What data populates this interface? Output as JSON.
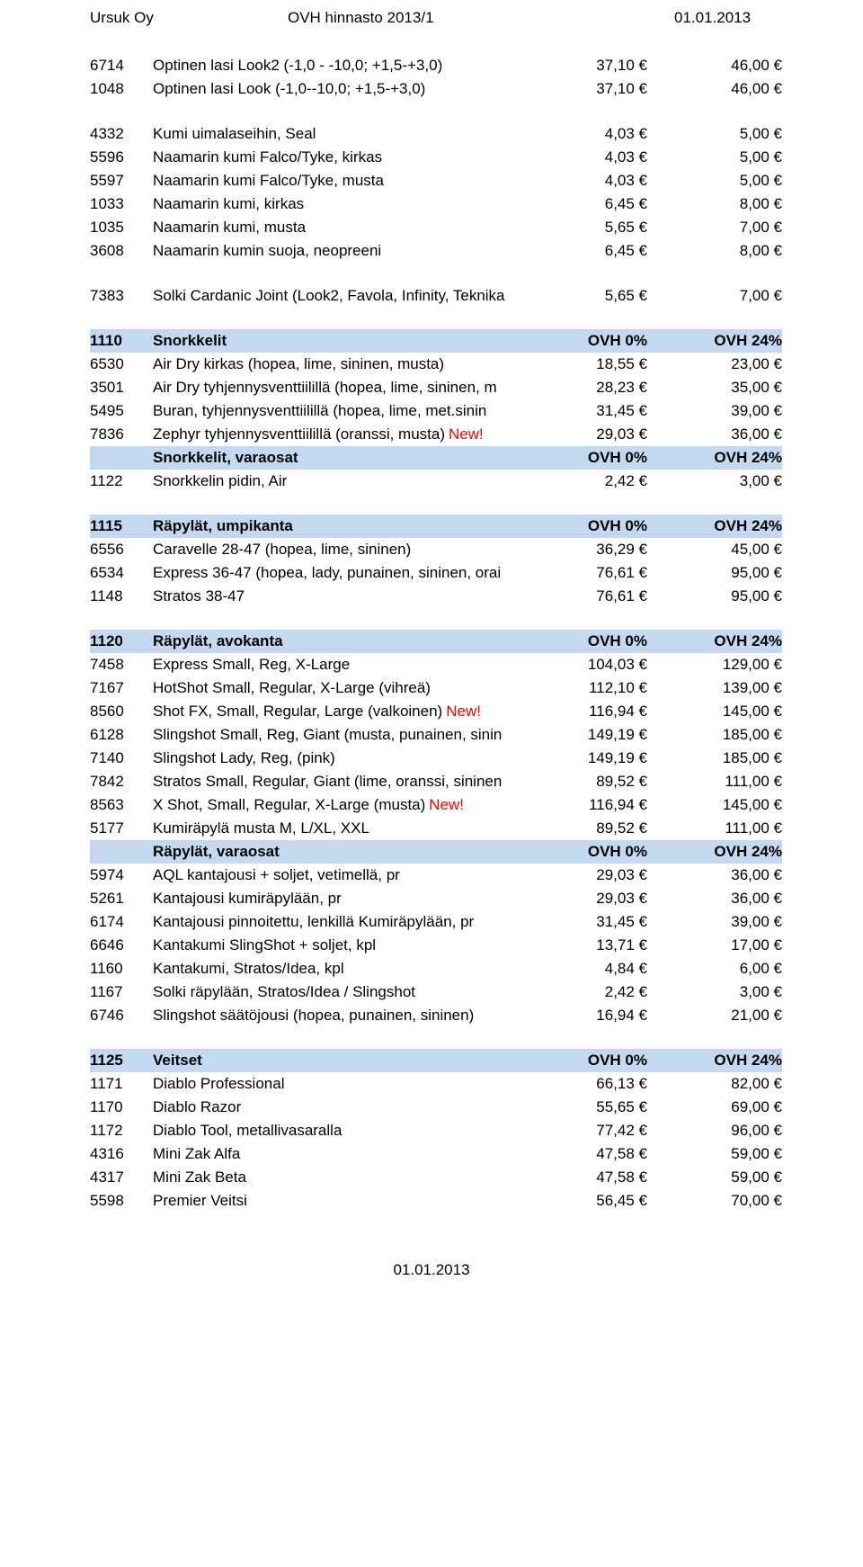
{
  "colors": {
    "header_bg": "#c4d9ef",
    "new_color": "#ff0000"
  },
  "page_header": {
    "left": "Ursuk Oy",
    "center": "OVH hinnasto 2013/1",
    "right": "01.01.2013"
  },
  "footer": "01.01.2013",
  "groups": [
    {
      "header": null,
      "rows": [
        {
          "code": "6714",
          "desc": "Optinen lasi Look2 (-1,0 - -10,0; +1,5-+3,0)",
          "p0": "37,10 €",
          "p24": "46,00 €"
        },
        {
          "code": "1048",
          "desc": "Optinen lasi Look (-1,0--10,0; +1,5-+3,0)",
          "p0": "37,10 €",
          "p24": "46,00 €"
        }
      ]
    },
    {
      "header": null,
      "rows": [
        {
          "code": "4332",
          "desc": "Kumi uimalaseihin, Seal",
          "p0": "4,03 €",
          "p24": "5,00 €"
        },
        {
          "code": "5596",
          "desc": "Naamarin kumi Falco/Tyke, kirkas",
          "p0": "4,03 €",
          "p24": "5,00 €"
        },
        {
          "code": "5597",
          "desc": "Naamarin kumi Falco/Tyke, musta",
          "p0": "4,03 €",
          "p24": "5,00 €"
        },
        {
          "code": "1033",
          "desc": "Naamarin kumi, kirkas",
          "p0": "6,45 €",
          "p24": "8,00 €"
        },
        {
          "code": "1035",
          "desc": "Naamarin kumi, musta",
          "p0": "5,65 €",
          "p24": "7,00 €"
        },
        {
          "code": "3608",
          "desc": "Naamarin kumin suoja, neopreeni",
          "p0": "6,45 €",
          "p24": "8,00 €"
        }
      ]
    },
    {
      "header": null,
      "rows": [
        {
          "code": "7383",
          "desc": "Solki Cardanic Joint (Look2, Favola, Infinity, Teknika",
          "p0": "5,65 €",
          "p24": "7,00 €"
        }
      ]
    },
    {
      "header": {
        "code": "1110",
        "desc": "Snorkkelit",
        "p0": "OVH 0%",
        "p24": "OVH 24%"
      },
      "rows": [
        {
          "code": "6530",
          "desc": "Air Dry kirkas (hopea, lime, sininen, musta)",
          "p0": "18,55 €",
          "p24": "23,00 €"
        },
        {
          "code": "3501",
          "desc": "Air Dry tyhjennysventtiilillä (hopea, lime, sininen, m",
          "p0": "28,23 €",
          "p24": "35,00 €"
        },
        {
          "code": "5495",
          "desc": "Buran, tyhjennysventtiilillä (hopea, lime, met.sinin",
          "p0": "31,45 €",
          "p24": "39,00 €"
        },
        {
          "code": "7836",
          "desc": "Zephyr tyhjennysventtiilillä (oranssi, musta)",
          "extra": "New!",
          "p0": "29,03 €",
          "p24": "36,00 €"
        }
      ],
      "subheader": {
        "code": "",
        "desc": "Snorkkelit, varaosat",
        "p0": "OVH 0%",
        "p24": "OVH 24%"
      },
      "subrows": [
        {
          "code": "1122",
          "desc": "Snorkkelin pidin, Air",
          "p0": "2,42 €",
          "p24": "3,00 €"
        }
      ]
    },
    {
      "header": {
        "code": "1115",
        "desc": "Räpylät, umpikanta",
        "p0": "OVH 0%",
        "p24": "OVH 24%"
      },
      "rows": [
        {
          "code": "6556",
          "desc": "Caravelle 28-47 (hopea, lime, sininen)",
          "p0": "36,29 €",
          "p24": "45,00 €"
        },
        {
          "code": "6534",
          "desc": "Express 36-47 (hopea, lady, punainen, sininen, orai",
          "p0": "76,61 €",
          "p24": "95,00 €"
        },
        {
          "code": "1148",
          "desc": "Stratos 38-47",
          "p0": "76,61 €",
          "p24": "95,00 €"
        }
      ]
    },
    {
      "header": {
        "code": "1120",
        "desc": "Räpylät, avokanta",
        "p0": "OVH 0%",
        "p24": "OVH 24%"
      },
      "rows": [
        {
          "code": "7458",
          "desc": "Express Small, Reg, X-Large",
          "p0": "104,03 €",
          "p24": "129,00 €"
        },
        {
          "code": "7167",
          "desc": "HotShot Small, Regular, X-Large (vihreä)",
          "p0": "112,10 €",
          "p24": "139,00 €"
        },
        {
          "code": "8560",
          "desc": "Shot FX, Small, Regular, Large (valkoinen)",
          "extra": "New!",
          "p0": "116,94 €",
          "p24": "145,00 €"
        },
        {
          "code": "6128",
          "desc": "Slingshot Small, Reg, Giant (musta, punainen, sinin",
          "p0": "149,19 €",
          "p24": "185,00 €"
        },
        {
          "code": "7140",
          "desc": "Slingshot Lady, Reg, (pink)",
          "p0": "149,19 €",
          "p24": "185,00 €"
        },
        {
          "code": "7842",
          "desc": "Stratos Small, Regular, Giant (lime, oranssi, sininen",
          "p0": "89,52 €",
          "p24": "111,00 €"
        },
        {
          "code": "8563",
          "desc": "X Shot, Small, Regular, X-Large (musta)",
          "extra": "New!",
          "p0": "116,94 €",
          "p24": "145,00 €"
        },
        {
          "code": "5177",
          "desc": "Kumiräpylä musta M, L/XL, XXL",
          "p0": "89,52 €",
          "p24": "111,00 €"
        }
      ],
      "subheader": {
        "code": "",
        "desc": "Räpylät, varaosat",
        "p0": "OVH 0%",
        "p24": "OVH 24%"
      },
      "subrows": [
        {
          "code": "5974",
          "desc": "AQL kantajousi + soljet, vetimellä, pr",
          "p0": "29,03 €",
          "p24": "36,00 €"
        },
        {
          "code": "5261",
          "desc": "Kantajousi kumiräpylään, pr",
          "p0": "29,03 €",
          "p24": "36,00 €"
        },
        {
          "code": "6174",
          "desc": "Kantajousi pinnoitettu, lenkillä Kumiräpylään, pr",
          "p0": "31,45 €",
          "p24": "39,00 €"
        },
        {
          "code": "6646",
          "desc": "Kantakumi SlingShot + soljet, kpl",
          "p0": "13,71 €",
          "p24": "17,00 €"
        },
        {
          "code": "1160",
          "desc": "Kantakumi, Stratos/Idea, kpl",
          "p0": "4,84 €",
          "p24": "6,00 €"
        },
        {
          "code": "1167",
          "desc": "Solki räpylään, Stratos/Idea / Slingshot",
          "p0": "2,42 €",
          "p24": "3,00 €"
        },
        {
          "code": "6746",
          "desc": "Slingshot säätöjousi (hopea, punainen, sininen)",
          "p0": "16,94 €",
          "p24": "21,00 €"
        }
      ]
    },
    {
      "header": {
        "code": "1125",
        "desc": "Veitset",
        "p0": "OVH 0%",
        "p24": "OVH 24%"
      },
      "rows": [
        {
          "code": "1171",
          "desc": "Diablo Professional",
          "p0": "66,13 €",
          "p24": "82,00 €"
        },
        {
          "code": "1170",
          "desc": "Diablo Razor",
          "p0": "55,65 €",
          "p24": "69,00 €"
        },
        {
          "code": "1172",
          "desc": "Diablo Tool, metallivasaralla",
          "p0": "77,42 €",
          "p24": "96,00 €"
        },
        {
          "code": "4316",
          "desc": "Mini Zak Alfa",
          "p0": "47,58 €",
          "p24": "59,00 €"
        },
        {
          "code": "4317",
          "desc": "Mini Zak Beta",
          "p0": "47,58 €",
          "p24": "59,00 €"
        },
        {
          "code": "5598",
          "desc": "Premier Veitsi",
          "p0": "56,45 €",
          "p24": "70,00 €"
        }
      ]
    }
  ]
}
